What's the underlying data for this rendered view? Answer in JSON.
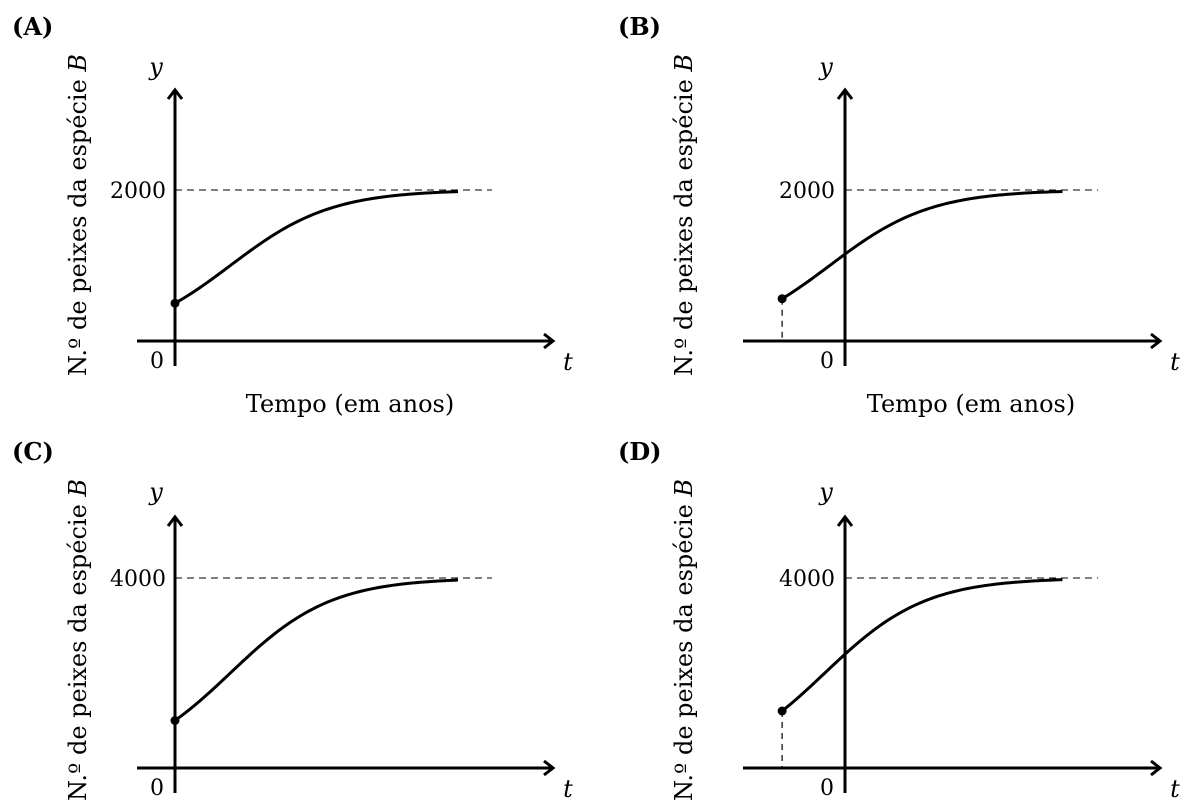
{
  "chart_data": [
    {
      "type": "line",
      "panel": "(A)",
      "ylabel": "N.º de peixes da espécie B",
      "ylabel_italic": "B",
      "xlabel": "Tempo (em anos)",
      "x_var": "t",
      "y_var": "y",
      "origin_label": "0",
      "asymptote": 2000,
      "asymptote_label": "2000",
      "ylim": [
        0,
        3300
      ],
      "xlim": [
        -1.4,
        13.6
      ],
      "start": {
        "t": 0,
        "y": 500
      },
      "end_t": 10.8,
      "grid": false
    },
    {
      "type": "line",
      "panel": "(B)",
      "ylabel": "N.º de peixes da espécie B",
      "ylabel_italic": "B",
      "xlabel": "Tempo (em anos)",
      "x_var": "t",
      "y_var": "y",
      "origin_label": "0",
      "asymptote": 2000,
      "asymptote_label": "2000",
      "ylim": [
        0,
        3300
      ],
      "xlim": [
        -3.9,
        11.1
      ],
      "start": {
        "t": -2.4,
        "y": 560
      },
      "end_t": 8.3,
      "grid": false
    },
    {
      "type": "line",
      "panel": "(C)",
      "ylabel": "N.º de peixes da espécie B",
      "ylabel_italic": "B",
      "xlabel": "",
      "x_var": "t",
      "y_var": "y",
      "origin_label": "0",
      "asymptote": 4000,
      "asymptote_label": "4000",
      "ylim": [
        0,
        6600
      ],
      "xlim": [
        -1.4,
        13.6
      ],
      "start": {
        "t": 0,
        "y": 1000
      },
      "end_t": 10.8,
      "grid": false
    },
    {
      "type": "line",
      "panel": "(D)",
      "ylabel": "N.º de peixes da espécie B",
      "ylabel_italic": "B",
      "xlabel": "",
      "x_var": "t",
      "y_var": "y",
      "origin_label": "0",
      "asymptote": 4000,
      "asymptote_label": "4000",
      "ylim": [
        0,
        6600
      ],
      "xlim": [
        -3.9,
        11.1
      ],
      "start": {
        "t": -2.4,
        "y": 1200
      },
      "end_t": 8.3,
      "grid": false
    }
  ]
}
